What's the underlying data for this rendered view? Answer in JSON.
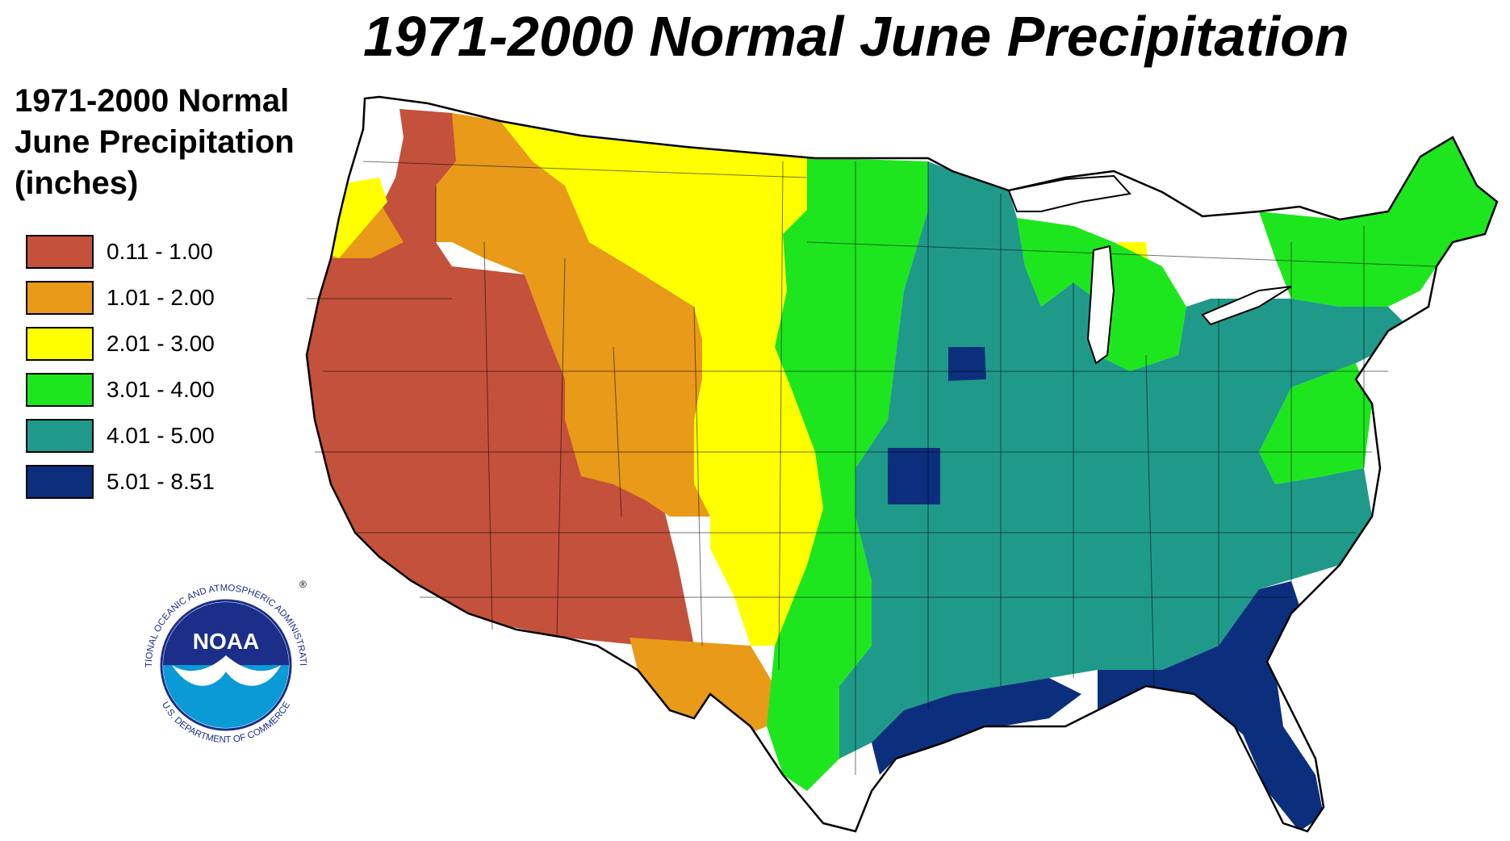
{
  "title": "1971-2000 Normal June Precipitation",
  "legend": {
    "title_lines": [
      "1971-2000 Normal",
      "June Precipitation",
      "(inches)"
    ],
    "items": [
      {
        "label": "0.11 - 1.00",
        "color": "#c4513b"
      },
      {
        "label": "1.01 - 2.00",
        "color": "#e89a18"
      },
      {
        "label": "2.01 - 3.00",
        "color": "#ffff00"
      },
      {
        "label": "3.01 - 4.00",
        "color": "#1ee61e"
      },
      {
        "label": "4.01 - 5.00",
        "color": "#1f9a8a"
      },
      {
        "label": "5.01 - 8.51",
        "color": "#0c2f7d"
      }
    ]
  },
  "logo": {
    "name": "NOAA",
    "ring_text": "NATIONAL OCEANIC AND ATMOSPHERIC ADMINISTRATION",
    "bottom_text": "U.S. DEPARTMENT OF COMMERCE",
    "registered": "®"
  }
}
